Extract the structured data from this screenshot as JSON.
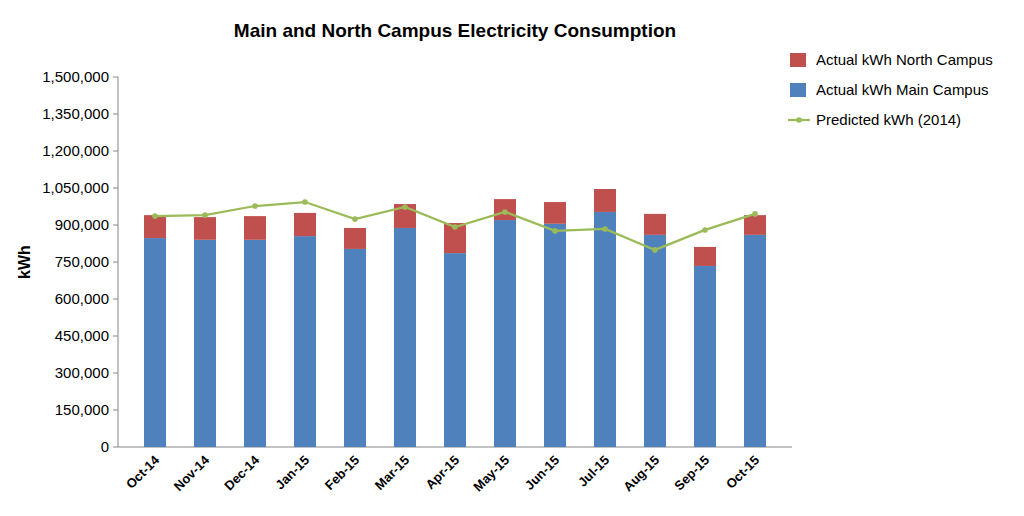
{
  "chart_data": {
    "type": "bar",
    "title": "Main and North Campus Electricity Consumption",
    "y_label": "kWh",
    "categories": [
      "Oct-14",
      "Nov-14",
      "Dec-14",
      "Jan-15",
      "Feb-15",
      "Mar-15",
      "Apr-15",
      "May-15",
      "Jun-15",
      "Jul-15",
      "Aug-15",
      "Sep-15",
      "Oct-15"
    ],
    "series": [
      {
        "name": "Actual kWh Main Campus",
        "color": "#4f81bd",
        "type": "bar",
        "values": [
          847000,
          840000,
          840000,
          855000,
          803000,
          888000,
          786000,
          920000,
          905000,
          953000,
          860000,
          734000,
          860000
        ]
      },
      {
        "name": "Actual kWh North Campus",
        "color": "#c0504d",
        "type": "bar",
        "values": [
          93000,
          92000,
          96000,
          94000,
          85000,
          97000,
          122000,
          85000,
          88000,
          93000,
          85000,
          77000,
          80000
        ]
      },
      {
        "name": "Predicted kWh (2014)",
        "color": "#9bbb59",
        "type": "line",
        "marker": "circle",
        "values": [
          936000,
          940000,
          977000,
          993000,
          924000,
          973000,
          892000,
          953000,
          876000,
          884000,
          799000,
          880000,
          945000
        ]
      }
    ],
    "stacked": true,
    "legend": "right",
    "grid": false,
    "ylim": [
      0,
      1500000
    ],
    "yticks": [
      0,
      {
        "value": 150000,
        "label": "150,000"
      },
      {
        "value": 300000,
        "label": "300,000"
      },
      {
        "value": 450000,
        "label": "450,000"
      },
      {
        "value": 600000,
        "label": "600,000"
      },
      {
        "value": 750000,
        "label": "750,000"
      },
      {
        "value": 900000,
        "label": "900,000"
      },
      {
        "value": 1050000,
        "label": "1,050,000"
      },
      {
        "value": 1200000,
        "label": "1,200,000"
      },
      {
        "value": 1350000,
        "label": "1,350,000"
      },
      {
        "value": 1500000,
        "label": "1,500,000"
      }
    ]
  }
}
